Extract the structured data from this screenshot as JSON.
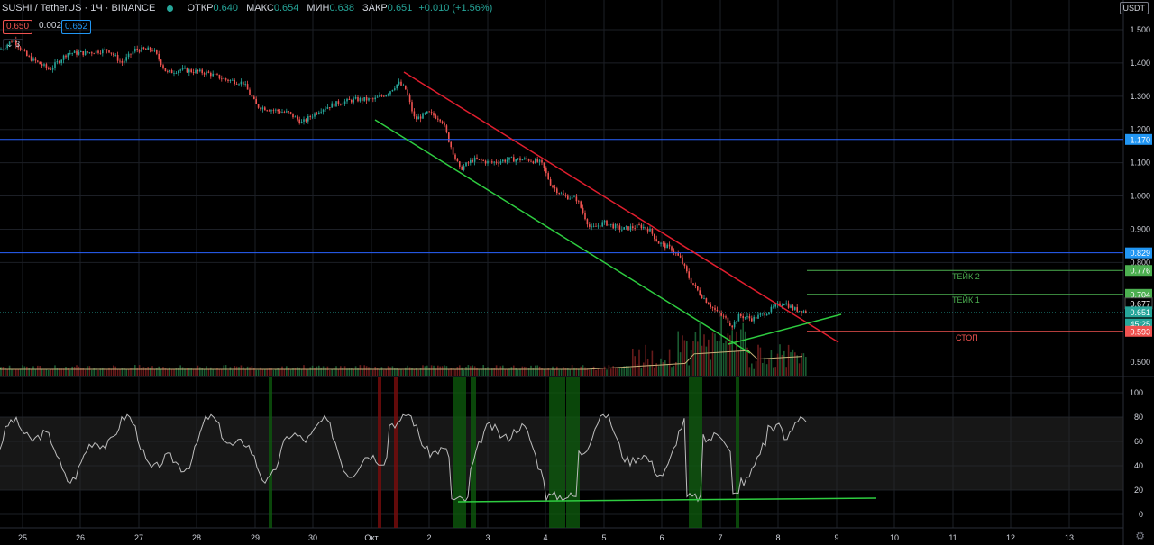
{
  "header": {
    "symbol": "SUSHI / TetherUS · 1Ч · BINANCE",
    "open_label": "ОТКР",
    "open_value": "0.640",
    "high_label": "МАКС",
    "high_value": "0.654",
    "low_label": "МИН",
    "low_value": "0.638",
    "close_label": "ЗАКР",
    "close_value": "0.651",
    "change": "+0.010 (+1.56%)",
    "bid": "0.650",
    "spread": "0.002",
    "ask": "0.652",
    "indicator_count": "3",
    "currency": "USDT"
  },
  "colors": {
    "up": "#26a69a",
    "down": "#ef5350",
    "bg": "#000000",
    "blue_line": "#2962ff",
    "green_trend": "#2ecc40",
    "red_trend": "#e01e2e"
  },
  "price_axis": {
    "ticks": [
      "1.500",
      "1.400",
      "1.300",
      "1.200",
      "1.100",
      "1.000",
      "0.900",
      "0.800",
      "0.500"
    ],
    "badges": [
      {
        "text": "1.170",
        "price": 1.17,
        "color": "#2196f3"
      },
      {
        "text": "0.829",
        "price": 0.829,
        "color": "#2196f3"
      },
      {
        "text": "0.776",
        "price": 0.776,
        "color": "#4caf50"
      },
      {
        "text": "0.704",
        "price": 0.704,
        "color": "#4caf50"
      },
      {
        "text": "0.677",
        "price": 0.677,
        "color": "#000000"
      },
      {
        "text": "0.651",
        "price": 0.651,
        "color": "#26a69a"
      },
      {
        "text": "45:25",
        "price": 0.615,
        "color": "#26a69a"
      },
      {
        "text": "0.593",
        "price": 0.593,
        "color": "#ef5350"
      }
    ]
  },
  "rsi_axis": {
    "ticks": [
      "100",
      "80",
      "60",
      "40",
      "20",
      "0"
    ]
  },
  "time_axis": {
    "labels": [
      "25",
      "26",
      "27",
      "28",
      "29",
      "30",
      "Окт",
      "2",
      "3",
      "4",
      "5",
      "6",
      "7",
      "8",
      "9",
      "10",
      "11",
      "12",
      "13"
    ]
  },
  "annotations": {
    "take2": "ТЕЙК 2",
    "take1": "ТЕЙК 1",
    "stop": "СТОП"
  }
}
